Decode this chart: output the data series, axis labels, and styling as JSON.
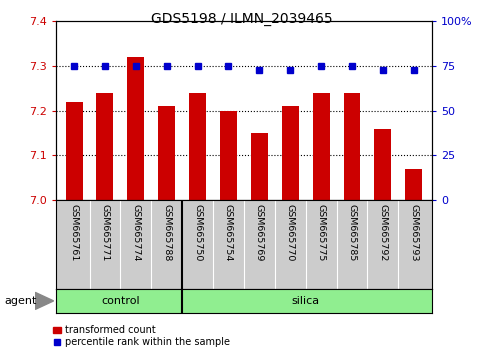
{
  "title": "GDS5198 / ILMN_2039465",
  "samples": [
    "GSM665761",
    "GSM665771",
    "GSM665774",
    "GSM665788",
    "GSM665750",
    "GSM665754",
    "GSM665769",
    "GSM665770",
    "GSM665775",
    "GSM665785",
    "GSM665792",
    "GSM665793"
  ],
  "red_values": [
    7.22,
    7.24,
    7.32,
    7.21,
    7.24,
    7.2,
    7.15,
    7.21,
    7.24,
    7.24,
    7.16,
    7.07
  ],
  "blue_values": [
    75,
    75,
    75,
    75,
    75,
    75,
    73,
    73,
    75,
    75,
    73,
    73
  ],
  "ylim_left": [
    7.0,
    7.4
  ],
  "ylim_right": [
    0,
    100
  ],
  "yticks_left": [
    7.0,
    7.1,
    7.2,
    7.3,
    7.4
  ],
  "yticks_right": [
    0,
    25,
    50,
    75,
    100
  ],
  "control_count": 4,
  "bar_color": "#cc0000",
  "dot_color": "#0000cc",
  "control_label": "control",
  "silica_label": "silica",
  "agent_label": "agent",
  "legend_red": "transformed count",
  "legend_blue": "percentile rank within the sample",
  "grid_values": [
    7.1,
    7.2,
    7.3
  ],
  "background_color": "#ffffff",
  "label_bg_color": "#cccccc",
  "group_bar_color": "#90ee90",
  "bar_width": 0.55
}
